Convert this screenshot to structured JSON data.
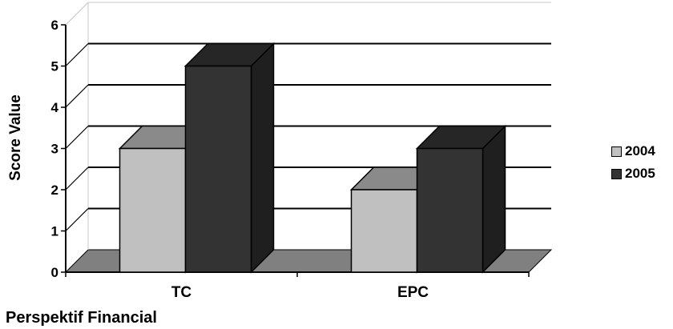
{
  "chart_data": {
    "type": "bar",
    "categories": [
      "TC",
      "EPC"
    ],
    "series": [
      {
        "name": "2004",
        "values": [
          3,
          2
        ],
        "color": "#c0c0c0"
      },
      {
        "name": "2005",
        "values": [
          5,
          3
        ],
        "color": "#333333"
      }
    ],
    "xlabel": "Perspektif Financial",
    "ylabel": "Score Value",
    "ylim": [
      0,
      6
    ],
    "yticks": [
      "0",
      "1",
      "2",
      "3",
      "4",
      "5",
      "6"
    ],
    "grid": true,
    "legend_position": "right",
    "three_d": true,
    "floor_color": "#808080"
  }
}
